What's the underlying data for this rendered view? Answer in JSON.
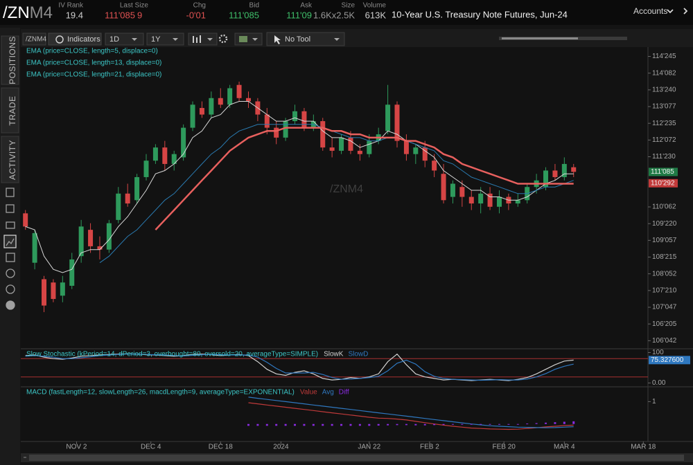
{
  "header": {
    "symbol_root": "/ZN",
    "symbol_contract": "M4",
    "fields": [
      {
        "label": "IV Rank",
        "value": "19.4",
        "color": "#cfcfcf"
      },
      {
        "label": "Last Size",
        "value": "111'085",
        "extra": "9",
        "color": "#e05252"
      },
      {
        "label": "Chg",
        "value": "-0'01",
        "color": "#e05252"
      },
      {
        "label": "Bid",
        "value": "111'085",
        "color": "#3fbf6a"
      },
      {
        "label": "Ask",
        "value": "111'09",
        "color": "#3fbf6a"
      },
      {
        "label": "Size",
        "value": "1.6Kx2.5K",
        "color": "#9a9a9a"
      },
      {
        "label": "Volume",
        "value": "613K",
        "color": "#cfcfcf"
      }
    ],
    "description": "10-Year U.S. Treasury Note Futures, Jun-24",
    "accounts": "Accounts"
  },
  "side_tabs": [
    "POSITIONS",
    "TRADE",
    "ACTIVITY"
  ],
  "toolbar": {
    "symbol": "/ZNM4",
    "indicators": "Indicators",
    "aggregation": "1D",
    "period": "1Y",
    "tool": "No Tool"
  },
  "chart_data": [
    {
      "type": "candlestick",
      "watermark": "/ZNM4",
      "up_color": "#2e9a5c",
      "down_color": "#d64545",
      "open": [
        110.0,
        108.5,
        108.0,
        107.9,
        107.5,
        107.8,
        108.7,
        109.5,
        109.0,
        108.9,
        109.8,
        110.6,
        110.4,
        111.1,
        111.6,
        112.0,
        111.5,
        111.7,
        112.6,
        113.2,
        113.0,
        113.5,
        113.3,
        113.9,
        113.5,
        113.4,
        113.0,
        112.6,
        112.3,
        112.8,
        113.1,
        112.6,
        112.8,
        112.0,
        111.9,
        112.3,
        111.9,
        111.8,
        112.2,
        112.5,
        113.3,
        112.2,
        111.8,
        112.0,
        111.6,
        111.2,
        110.5,
        110.8,
        110.5,
        110.3,
        110.6,
        110.2,
        110.5,
        110.3,
        110.4,
        110.8,
        110.8,
        111.3,
        111.1,
        111.4
      ],
      "high": [
        110.1,
        109.5,
        108.1,
        108.0,
        108.1,
        108.8,
        109.8,
        109.7,
        109.3,
        109.8,
        110.8,
        110.9,
        111.2,
        111.8,
        112.1,
        112.2,
        111.9,
        112.7,
        113.4,
        113.4,
        113.7,
        113.8,
        113.9,
        114.0,
        113.7,
        113.5,
        113.2,
        112.8,
        112.9,
        113.3,
        113.2,
        113.0,
        112.9,
        112.3,
        112.4,
        112.5,
        112.1,
        112.4,
        112.6,
        113.9,
        113.4,
        112.4,
        112.1,
        112.2,
        111.8,
        111.5,
        111.0,
        111.0,
        110.7,
        110.8,
        110.8,
        110.7,
        110.6,
        110.6,
        110.9,
        111.2,
        111.4,
        111.5,
        111.7,
        111.5
      ],
      "low": [
        109.5,
        108.3,
        107.0,
        107.3,
        107.3,
        107.7,
        108.5,
        108.8,
        108.6,
        108.8,
        109.7,
        110.2,
        110.3,
        111.0,
        111.5,
        111.3,
        111.3,
        111.6,
        112.5,
        112.9,
        112.9,
        113.2,
        113.2,
        113.4,
        113.2,
        112.8,
        112.4,
        112.1,
        112.2,
        112.7,
        112.5,
        112.5,
        111.9,
        111.7,
        111.8,
        111.8,
        111.6,
        111.7,
        112.1,
        112.4,
        112.0,
        111.6,
        111.5,
        111.4,
        111.1,
        110.3,
        110.3,
        110.2,
        110.1,
        110.0,
        110.1,
        110.0,
        110.1,
        110.2,
        110.3,
        110.6,
        110.7,
        111.0,
        111.0,
        111.1
      ],
      "close": [
        109.6,
        109.4,
        107.2,
        107.4,
        107.9,
        108.6,
        109.6,
        109.0,
        108.9,
        109.7,
        110.6,
        110.3,
        111.1,
        111.6,
        112.0,
        111.5,
        111.8,
        112.6,
        113.3,
        113.0,
        113.5,
        113.3,
        113.8,
        113.5,
        113.4,
        113.0,
        112.6,
        112.3,
        112.8,
        113.1,
        112.6,
        112.8,
        112.0,
        111.9,
        112.3,
        111.9,
        111.8,
        112.2,
        112.4,
        113.3,
        112.2,
        111.8,
        112.0,
        111.6,
        111.3,
        110.4,
        110.9,
        110.5,
        110.3,
        110.6,
        110.2,
        110.5,
        110.3,
        110.4,
        110.8,
        111.0,
        111.3,
        111.1,
        111.5,
        111.26
      ],
      "series": [
        {
          "name": "EMA (price=CLOSE, length=5, displace=0)",
          "color": "#d9d9d9",
          "width": 1,
          "values": [
            109.6,
            109.5,
            108.7,
            108.3,
            108.2,
            108.3,
            108.8,
            108.9,
            108.9,
            109.2,
            109.6,
            109.9,
            110.3,
            110.7,
            111.2,
            111.3,
            111.5,
            111.8,
            112.3,
            112.5,
            112.9,
            113.0,
            113.3,
            113.4,
            113.4,
            113.2,
            113.0,
            112.8,
            112.8,
            112.9,
            112.8,
            112.8,
            112.5,
            112.3,
            112.3,
            112.2,
            112.0,
            112.1,
            112.2,
            112.5,
            112.4,
            112.2,
            112.1,
            111.9,
            111.7,
            111.3,
            111.1,
            110.9,
            110.7,
            110.7,
            110.5,
            110.5,
            110.4,
            110.4,
            110.5,
            110.7,
            110.9,
            111.0,
            111.2,
            111.2
          ]
        },
        {
          "name": "EMA (price=CLOSE, length=13, displace=0)",
          "color": "#2a7ab0",
          "width": 1,
          "values": [
            null,
            null,
            null,
            null,
            null,
            null,
            null,
            null,
            108.5,
            108.7,
            109.0,
            109.3,
            109.5,
            109.8,
            110.1,
            110.4,
            110.6,
            110.9,
            111.2,
            111.5,
            111.8,
            112.0,
            112.3,
            112.5,
            112.6,
            112.7,
            112.7,
            112.7,
            112.7,
            112.7,
            112.7,
            112.7,
            112.6,
            112.5,
            112.4,
            112.3,
            112.3,
            112.2,
            112.2,
            112.3,
            112.3,
            112.2,
            112.1,
            112.0,
            111.9,
            111.6,
            111.5,
            111.3,
            111.1,
            111.0,
            110.9,
            110.8,
            110.7,
            110.6,
            110.6,
            110.7,
            110.8,
            110.8,
            110.9,
            111.0
          ]
        },
        {
          "name": "EMA (price=CLOSE, length=21, displace=0)",
          "color": "#e8605e",
          "width": 2.5,
          "values": [
            null,
            null,
            null,
            null,
            null,
            null,
            null,
            null,
            null,
            null,
            null,
            null,
            null,
            null,
            109.5,
            109.8,
            110.1,
            110.4,
            110.7,
            111.0,
            111.3,
            111.6,
            111.9,
            112.1,
            112.3,
            112.4,
            112.5,
            112.5,
            112.6,
            112.6,
            112.6,
            112.6,
            112.6,
            112.5,
            112.5,
            112.4,
            112.4,
            112.3,
            112.3,
            112.3,
            112.3,
            112.2,
            112.2,
            112.1,
            112.0,
            111.8,
            111.7,
            111.5,
            111.4,
            111.3,
            111.2,
            111.1,
            111.0,
            110.9,
            110.9,
            110.9,
            110.9,
            110.9,
            110.9,
            110.9
          ]
        }
      ],
      "xlim": [
        -0.5,
        67
      ],
      "xticks": [
        {
          "value": 5.5,
          "label": "NOV 2"
        },
        {
          "value": 13.5,
          "label": "DEC 4"
        },
        {
          "value": 21,
          "label": "DEC 18"
        },
        {
          "value": 27.5,
          "label": "2024"
        },
        {
          "value": 37,
          "label": "JAN 22"
        },
        {
          "value": 43.5,
          "label": "FEB 2"
        },
        {
          "value": 51.5,
          "label": "FEB 20"
        },
        {
          "value": 58,
          "label": "MAR 4"
        },
        {
          "value": 66.5,
          "label": "MAR 18"
        }
      ],
      "ylim": [
        105.93,
        115.05
      ],
      "yticks": [
        {
          "value": 114.765625,
          "label": "114'245"
        },
        {
          "value": 114.2578125,
          "label": "114'082"
        },
        {
          "value": 113.75,
          "label": "113'240"
        },
        {
          "value": 113.2421875,
          "label": "113'077"
        },
        {
          "value": 112.734375,
          "label": "112'235"
        },
        {
          "value": 112.2265625,
          "label": "112'072"
        },
        {
          "value": 111.71875,
          "label": "111'230"
        },
        {
          "value": 110.1953125,
          "label": "110'062"
        },
        {
          "value": 109.6875,
          "label": "109'220"
        },
        {
          "value": 109.1796875,
          "label": "109'057"
        },
        {
          "value": 108.671875,
          "label": "108'215"
        },
        {
          "value": 108.1640625,
          "label": "108'052"
        },
        {
          "value": 107.65625,
          "label": "107'210"
        },
        {
          "value": 107.1484375,
          "label": "107'047"
        },
        {
          "value": 106.640625,
          "label": "106'205"
        },
        {
          "value": 106.1328125,
          "label": "106'042"
        }
      ],
      "price_labels": [
        {
          "value": 111.2578125,
          "label": "111'085",
          "color": "#1f7a45"
        },
        {
          "value": 110.9140625,
          "label": "110'292",
          "color": "#c23a3a"
        }
      ]
    },
    {
      "type": "line",
      "title": "Slow Stochastic (kPeriod=14, dPeriod=3, overbought=80, oversold=20, averageType=SIMPLE)",
      "series": [
        {
          "name": "SlowK",
          "color": "#d0d0d0",
          "values": [
            90,
            92,
            85,
            80,
            78,
            82,
            88,
            90,
            92,
            94,
            95,
            96,
            95,
            93,
            92,
            90,
            88,
            90,
            94,
            95,
            93,
            90,
            92,
            94,
            90,
            70,
            45,
            30,
            25,
            35,
            40,
            30,
            15,
            10,
            12,
            18,
            15,
            20,
            30,
            70,
            95,
            60,
            30,
            20,
            15,
            10,
            12,
            10,
            8,
            10,
            12,
            10,
            8,
            12,
            18,
            30,
            45,
            60,
            72,
            75.3276
          ]
        },
        {
          "name": "SlowD",
          "color": "#2f78c0",
          "values": [
            88,
            90,
            88,
            85,
            80,
            80,
            83,
            86,
            90,
            92,
            94,
            95,
            95,
            94,
            93,
            92,
            90,
            89,
            91,
            93,
            94,
            93,
            92,
            92,
            92,
            85,
            68,
            48,
            33,
            33,
            33,
            35,
            28,
            18,
            12,
            13,
            15,
            18,
            22,
            40,
            65,
            75,
            62,
            37,
            22,
            15,
            12,
            11,
            10,
            9,
            10,
            11,
            10,
            10,
            13,
            20,
            31,
            45,
            55,
            62
          ]
        }
      ],
      "levels": [
        80,
        20
      ],
      "level_color": "#a83030",
      "ylim": [
        -8,
        108
      ],
      "yticks": [
        100,
        {
          "value": 0,
          "label": "0.00"
        }
      ],
      "last_labels": [
        {
          "value": 75.3276,
          "label": "75.327600",
          "color": "#2f78c0"
        }
      ]
    },
    {
      "type": "line",
      "title": "MACD (fastLength=12, slowLength=26, macdLength=9, averageType=EXPONENTIAL)",
      "series": [
        {
          "name": "Value",
          "color": "#c03a3a",
          "values": [
            null,
            null,
            null,
            null,
            null,
            null,
            null,
            null,
            null,
            null,
            null,
            null,
            null,
            null,
            null,
            null,
            null,
            null,
            null,
            null,
            null,
            null,
            null,
            null,
            0.95,
            0.9,
            0.85,
            0.8,
            0.75,
            0.7,
            0.65,
            0.6,
            0.55,
            0.5,
            0.45,
            0.4,
            0.35,
            0.3,
            0.26,
            0.25,
            0.22,
            0.18,
            0.12,
            0.06,
            0.0,
            -0.05,
            -0.1,
            -0.14,
            -0.18,
            -0.2,
            -0.22,
            -0.23,
            -0.24,
            -0.23,
            -0.2,
            -0.17,
            -0.13,
            -0.1,
            -0.07,
            -0.05
          ]
        },
        {
          "name": "Avg",
          "color": "#2f78c0",
          "values": [
            null,
            null,
            null,
            null,
            null,
            null,
            null,
            null,
            null,
            null,
            null,
            null,
            null,
            null,
            null,
            null,
            null,
            null,
            null,
            null,
            null,
            null,
            null,
            null,
            1.2,
            1.15,
            1.1,
            1.05,
            1.0,
            0.95,
            0.9,
            0.85,
            0.8,
            0.75,
            0.7,
            0.65,
            0.6,
            0.55,
            0.5,
            0.45,
            0.4,
            0.35,
            0.3,
            0.25,
            0.2,
            0.15,
            0.1,
            0.05,
            0.0,
            -0.04,
            -0.08,
            -0.1,
            -0.12,
            -0.14,
            -0.15,
            -0.16,
            -0.17,
            -0.16,
            -0.14,
            -0.12
          ]
        },
        {
          "name": "Diff",
          "color": "#8a2be2",
          "style": "bars",
          "values": [
            null,
            null,
            null,
            null,
            null,
            null,
            null,
            null,
            null,
            null,
            null,
            null,
            null,
            null,
            null,
            null,
            null,
            null,
            null,
            null,
            null,
            null,
            null,
            null,
            -0.08,
            -0.08,
            -0.08,
            -0.08,
            -0.08,
            -0.08,
            -0.08,
            -0.08,
            -0.08,
            -0.08,
            -0.08,
            -0.08,
            -0.08,
            -0.08,
            -0.07,
            -0.06,
            -0.05,
            -0.05,
            -0.06,
            -0.06,
            -0.05,
            -0.04,
            -0.03,
            -0.03,
            -0.03,
            -0.03,
            -0.03,
            -0.02,
            -0.01,
            0.0,
            0.02,
            0.04,
            0.06,
            0.08,
            0.1,
            0.12
          ]
        }
      ],
      "ylim": [
        -0.75,
        1.6
      ],
      "yticks": [
        1
      ]
    }
  ]
}
